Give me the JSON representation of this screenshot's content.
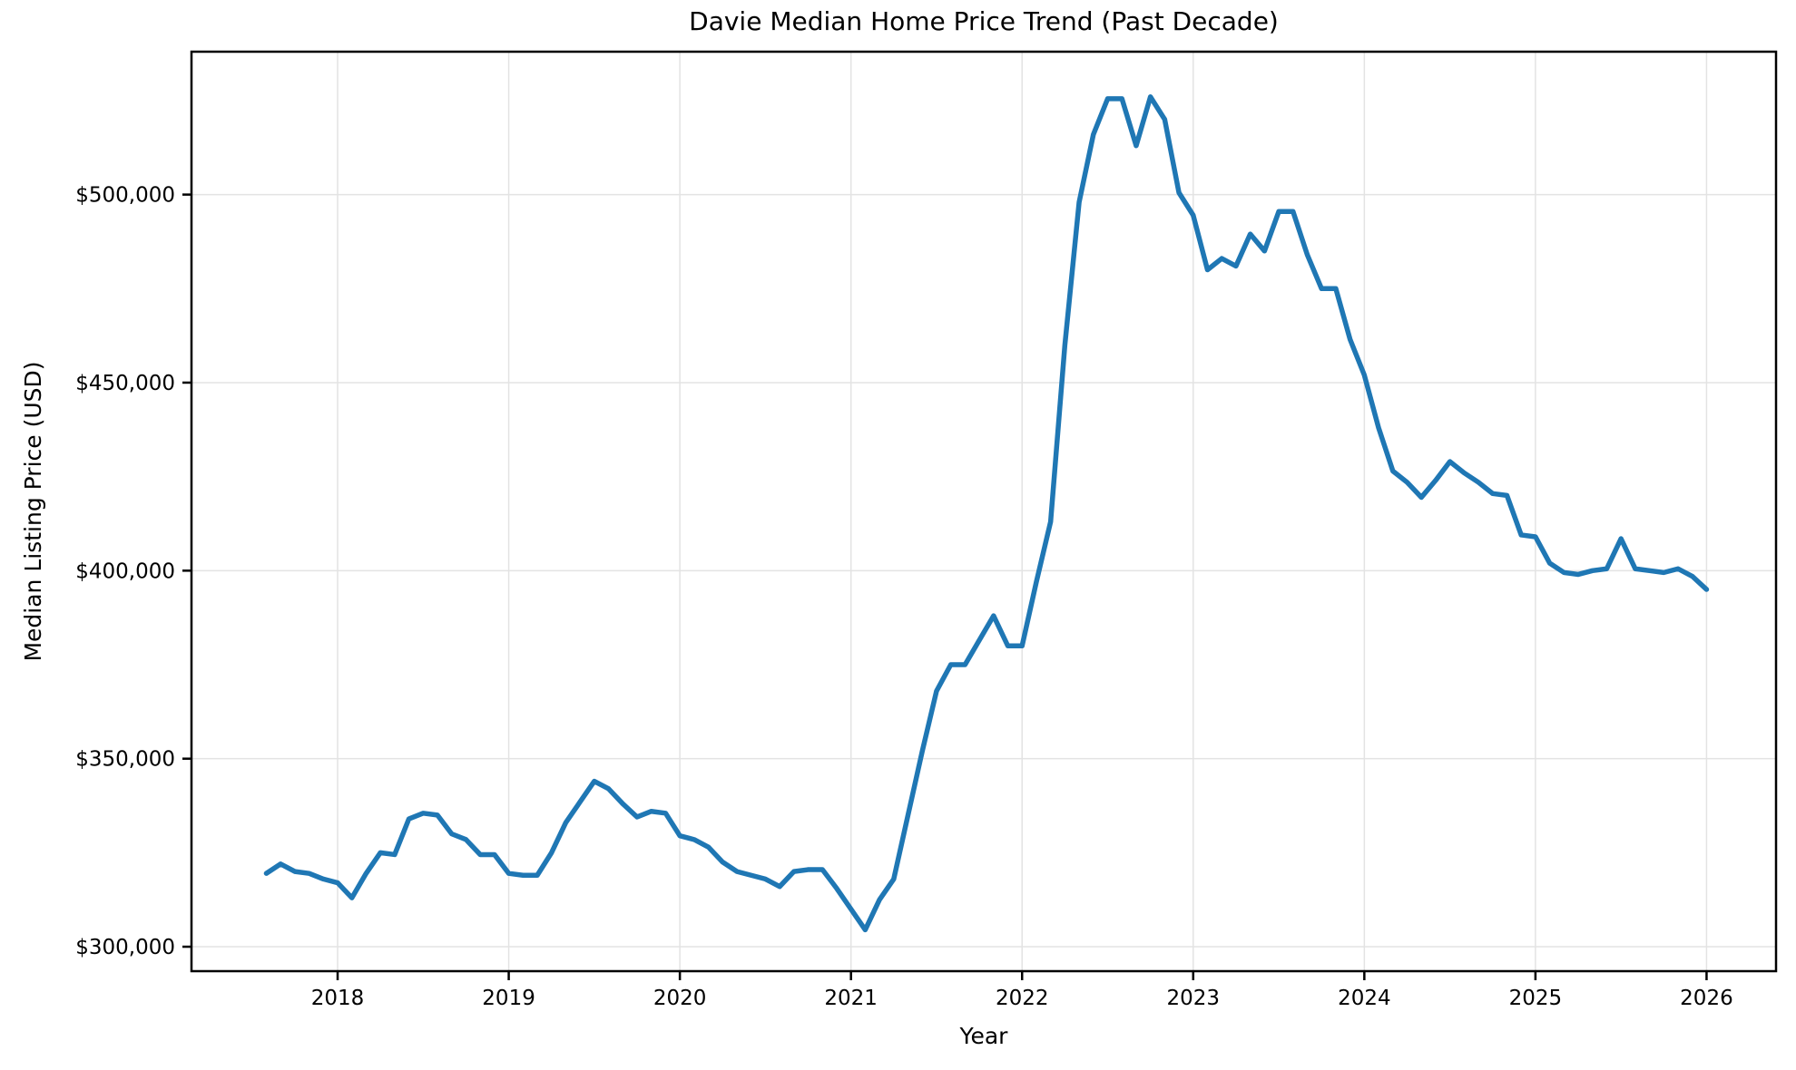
{
  "figure": {
    "title": "Davie Median Home Price Trend (Past Decade)",
    "xlabel": "Year",
    "ylabel": "Median Listing Price (USD)"
  },
  "axes": {
    "x_ticks": [
      {
        "value": 2018,
        "label": "2018"
      },
      {
        "value": 2019,
        "label": "2019"
      },
      {
        "value": 2020,
        "label": "2020"
      },
      {
        "value": 2021,
        "label": "2021"
      },
      {
        "value": 2022,
        "label": "2022"
      },
      {
        "value": 2023,
        "label": "2023"
      },
      {
        "value": 2024,
        "label": "2024"
      },
      {
        "value": 2025,
        "label": "2025"
      },
      {
        "value": 2026,
        "label": "2026"
      }
    ],
    "y_ticks": [
      {
        "value": 300000,
        "label": "$300,000"
      },
      {
        "value": 350000,
        "label": "$350,000"
      },
      {
        "value": 400000,
        "label": "$400,000"
      },
      {
        "value": 450000,
        "label": "$450,000"
      },
      {
        "value": 500000,
        "label": "$500,000"
      }
    ]
  },
  "style": {
    "line_color": "#1f77b4",
    "line_width": 5.5,
    "grid_color": "#e3e3e3",
    "grid_width": 1.5,
    "spine_color": "#000000",
    "spine_width": 2.5,
    "tick_length": 10,
    "tick_width": 2.5,
    "tick_font_size": 23,
    "background": "#ffffff"
  },
  "chart_data": {
    "type": "line",
    "title": "Davie Median Home Price Trend (Past Decade)",
    "xlabel": "Year",
    "ylabel": "Median Listing Price (USD)",
    "series_name": "Median Listing Price",
    "legend": false,
    "grid": true,
    "xlim": [
      2017.146,
      2026.406
    ],
    "ylim": [
      293500,
      538000
    ],
    "x": [
      "2017-08",
      "2017-09",
      "2017-10",
      "2017-11",
      "2017-12",
      "2018-01",
      "2018-02",
      "2018-03",
      "2018-04",
      "2018-05",
      "2018-06",
      "2018-07",
      "2018-08",
      "2018-09",
      "2018-10",
      "2018-11",
      "2018-12",
      "2019-01",
      "2019-02",
      "2019-03",
      "2019-04",
      "2019-05",
      "2019-06",
      "2019-07",
      "2019-08",
      "2019-09",
      "2019-10",
      "2019-11",
      "2019-12",
      "2020-01",
      "2020-02",
      "2020-03",
      "2020-04",
      "2020-05",
      "2020-06",
      "2020-07",
      "2020-08",
      "2020-09",
      "2020-10",
      "2020-11",
      "2020-12",
      "2021-01",
      "2021-02",
      "2021-03",
      "2021-04",
      "2021-05",
      "2021-06",
      "2021-07",
      "2021-08",
      "2021-09",
      "2021-10",
      "2021-11",
      "2021-12",
      "2022-01",
      "2022-02",
      "2022-03",
      "2022-04",
      "2022-05",
      "2022-06",
      "2022-07",
      "2022-08",
      "2022-09",
      "2022-10",
      "2022-11",
      "2022-12",
      "2023-01",
      "2023-02",
      "2023-03",
      "2023-04",
      "2023-05",
      "2023-06",
      "2023-07",
      "2023-08",
      "2023-09",
      "2023-10",
      "2023-11",
      "2023-12",
      "2024-01",
      "2024-02",
      "2024-03",
      "2024-04",
      "2024-05",
      "2024-06",
      "2024-07",
      "2024-08",
      "2024-09",
      "2024-10",
      "2024-11",
      "2024-12",
      "2025-01",
      "2025-02",
      "2025-03",
      "2025-04",
      "2025-05",
      "2025-06",
      "2025-07",
      "2025-08",
      "2025-09",
      "2025-10",
      "2025-11",
      "2025-12",
      "2026-01"
    ],
    "values": [
      319500,
      322000,
      320000,
      319500,
      318000,
      317000,
      313000,
      319500,
      325000,
      324500,
      334000,
      335500,
      335000,
      330000,
      328500,
      324500,
      324500,
      319500,
      319000,
      319000,
      325000,
      333000,
      338500,
      344000,
      342000,
      338000,
      334500,
      336000,
      335500,
      329500,
      328500,
      326500,
      322500,
      320000,
      319000,
      318000,
      316000,
      320000,
      320500,
      320500,
      315500,
      310000,
      304500,
      312500,
      318000,
      335000,
      352000,
      368000,
      375000,
      375000,
      381500,
      388000,
      380000,
      380000,
      397000,
      413000,
      460000,
      498000,
      516000,
      525500,
      525500,
      513000,
      526000,
      520000,
      500500,
      494500,
      480000,
      483000,
      481000,
      489500,
      485000,
      495500,
      495500,
      484000,
      475000,
      475000,
      461500,
      452000,
      438000,
      426500,
      423500,
      419500,
      424000,
      429000,
      426000,
      423500,
      420500,
      420000,
      409500,
      409000,
      402000,
      399500,
      399000,
      400000,
      400500,
      408500,
      400500,
      400000,
      399500,
      400500,
      398500,
      395000
    ]
  }
}
